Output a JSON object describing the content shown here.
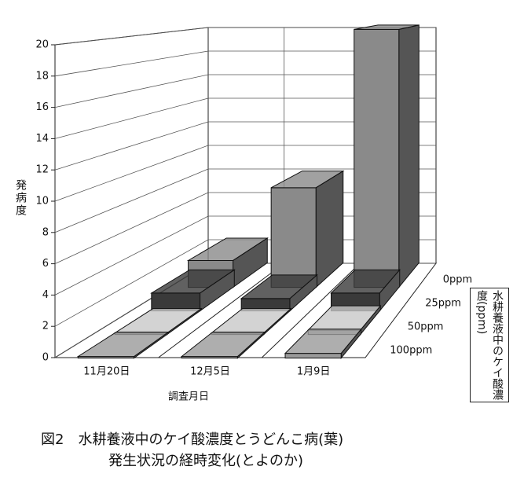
{
  "chart_data": {
    "type": "bar3d",
    "y_label": "発病度",
    "x_label": "調査月日",
    "depth_label": "水耕養液中のケイ酸濃度(ppm)",
    "caption": [
      "図2　水耕養液中のケイ酸濃度とうどんこ病(葉)",
      "発生状況の経時変化(とよのか)"
    ],
    "categories": [
      "11月20日",
      "12月5日",
      "1月9日"
    ],
    "series": [
      {
        "name": "0ppm",
        "color": "#8a8a8a",
        "values": [
          2.1,
          7.8,
          20.2
        ]
      },
      {
        "name": "25ppm",
        "color": "#3a3a3a",
        "values": [
          1.3,
          0.9,
          1.3
        ]
      },
      {
        "name": "50ppm",
        "color": "#c8c8c8",
        "values": [
          0.1,
          0.1,
          0.3
        ]
      },
      {
        "name": "100ppm",
        "color": "#9a9a9a",
        "values": [
          0.1,
          0.1,
          0.3
        ]
      }
    ],
    "ylim": [
      0,
      20
    ],
    "yticks": [
      0,
      2,
      4,
      6,
      8,
      10,
      12,
      14,
      16,
      18,
      20
    ],
    "grid": true
  }
}
